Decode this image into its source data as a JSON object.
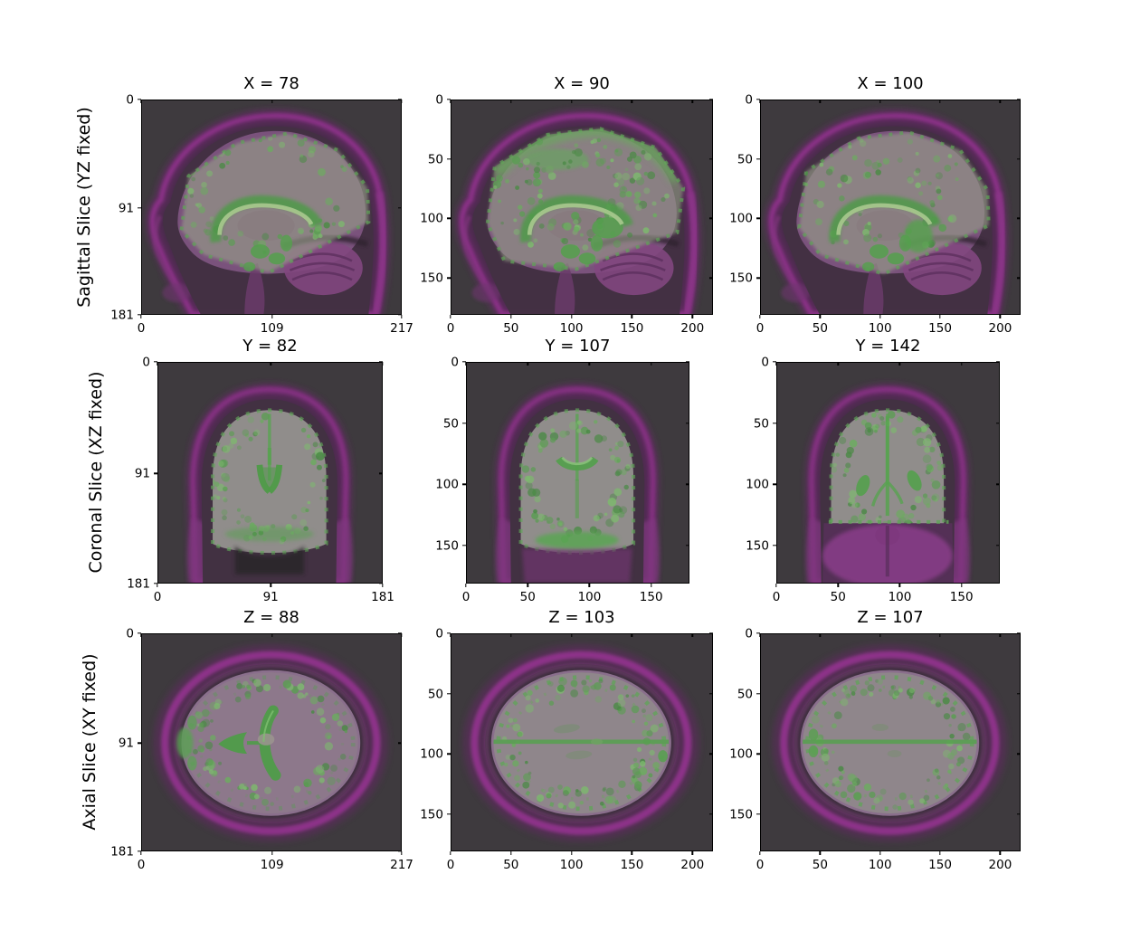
{
  "figure": {
    "row_labels": [
      "Sagittal Slice (YZ fixed)",
      "Coronal Slice (XZ fixed)",
      "Axial Slice (XY fixed)"
    ],
    "background": "#ffffff",
    "palette": {
      "axes_background": "#3e3a3e",
      "anatomical_magenta": "#8d3389",
      "deep_purple": "#543056",
      "brain_gray": "#8a7b8c",
      "overlay_green": "#55a04d",
      "text": "#000000"
    }
  },
  "chart_data": [
    {
      "type": "heatmap",
      "plane": "sagittal",
      "title": "X = 78",
      "row_label": "Sagittal Slice (YZ fixed)",
      "fixed_axis": "X",
      "slice_index": 78,
      "xlim": [
        0,
        217
      ],
      "ylim": [
        181,
        0
      ],
      "xticks": [
        0,
        109,
        217
      ],
      "yticks": [
        0,
        91,
        181
      ],
      "content": "sagittal brain MRI, magenta anatomical underlay with green overlay region"
    },
    {
      "type": "heatmap",
      "plane": "sagittal",
      "title": "X = 90",
      "row_label": "Sagittal Slice (YZ fixed)",
      "fixed_axis": "X",
      "slice_index": 90,
      "xlim": [
        0,
        217
      ],
      "ylim": [
        181,
        0
      ],
      "xticks": [
        0,
        50,
        100,
        150,
        200
      ],
      "yticks": [
        0,
        50,
        100,
        150
      ],
      "content": "sagittal brain MRI, dense green overlay over upper brain"
    },
    {
      "type": "heatmap",
      "plane": "sagittal",
      "title": "X = 100",
      "row_label": "Sagittal Slice (YZ fixed)",
      "fixed_axis": "X",
      "slice_index": 100,
      "xlim": [
        0,
        217
      ],
      "ylim": [
        181,
        0
      ],
      "xticks": [
        0,
        50,
        100,
        150,
        200
      ],
      "yticks": [
        0,
        50,
        100,
        150
      ],
      "content": "sagittal brain MRI with green overlay and corpus callosum highlight"
    },
    {
      "type": "heatmap",
      "plane": "coronal",
      "title": "Y = 82",
      "row_label": "Coronal Slice (XZ fixed)",
      "fixed_axis": "Y",
      "slice_index": 82,
      "xlim": [
        0,
        181
      ],
      "ylim": [
        181,
        0
      ],
      "xticks": [
        0,
        91,
        181
      ],
      "yticks": [
        0,
        91,
        181
      ],
      "content": "coronal brain MRI, green ventricle trident at center"
    },
    {
      "type": "heatmap",
      "plane": "coronal",
      "title": "Y = 107",
      "row_label": "Coronal Slice (XZ fixed)",
      "fixed_axis": "Y",
      "slice_index": 107,
      "xlim": [
        0,
        181
      ],
      "ylim": [
        181,
        0
      ],
      "xticks": [
        0,
        50,
        100,
        150
      ],
      "yticks": [
        0,
        50,
        100,
        150
      ],
      "content": "coronal brain MRI, green chevron ventricle and green band at brain base"
    },
    {
      "type": "heatmap",
      "plane": "coronal",
      "title": "Y = 142",
      "row_label": "Coronal Slice (XZ fixed)",
      "fixed_axis": "Y",
      "slice_index": 142,
      "xlim": [
        0,
        181
      ],
      "ylim": [
        181,
        0
      ],
      "xticks": [
        0,
        50,
        100,
        150
      ],
      "yticks": [
        0,
        50,
        100,
        150
      ],
      "content": "coronal brain MRI, bright magenta cerebellum below flat brain base"
    },
    {
      "type": "heatmap",
      "plane": "axial",
      "title": "Z = 88",
      "row_label": "Axial Slice (XY fixed)",
      "fixed_axis": "Z",
      "slice_index": 88,
      "xlim": [
        0,
        217
      ],
      "ylim": [
        181,
        0
      ],
      "xticks": [
        0,
        109,
        217
      ],
      "yticks": [
        0,
        91,
        181
      ],
      "content": "axial brain MRI, green butterfly-shaped ventricles at center"
    },
    {
      "type": "heatmap",
      "plane": "axial",
      "title": "Z = 103",
      "row_label": "Axial Slice (XY fixed)",
      "fixed_axis": "Z",
      "slice_index": 103,
      "xlim": [
        0,
        217
      ],
      "ylim": [
        181,
        0
      ],
      "xticks": [
        0,
        50,
        100,
        150,
        200
      ],
      "yticks": [
        0,
        50,
        100,
        150
      ],
      "content": "axial brain MRI, green interhemispheric midline"
    },
    {
      "type": "heatmap",
      "plane": "axial",
      "title": "Z = 107",
      "row_label": "Axial Slice (XY fixed)",
      "fixed_axis": "Z",
      "slice_index": 107,
      "xlim": [
        0,
        217
      ],
      "ylim": [
        181,
        0
      ],
      "xticks": [
        0,
        50,
        100,
        150,
        200
      ],
      "yticks": [
        0,
        50,
        100,
        150
      ],
      "content": "axial brain MRI, green interhemispheric midline"
    }
  ]
}
